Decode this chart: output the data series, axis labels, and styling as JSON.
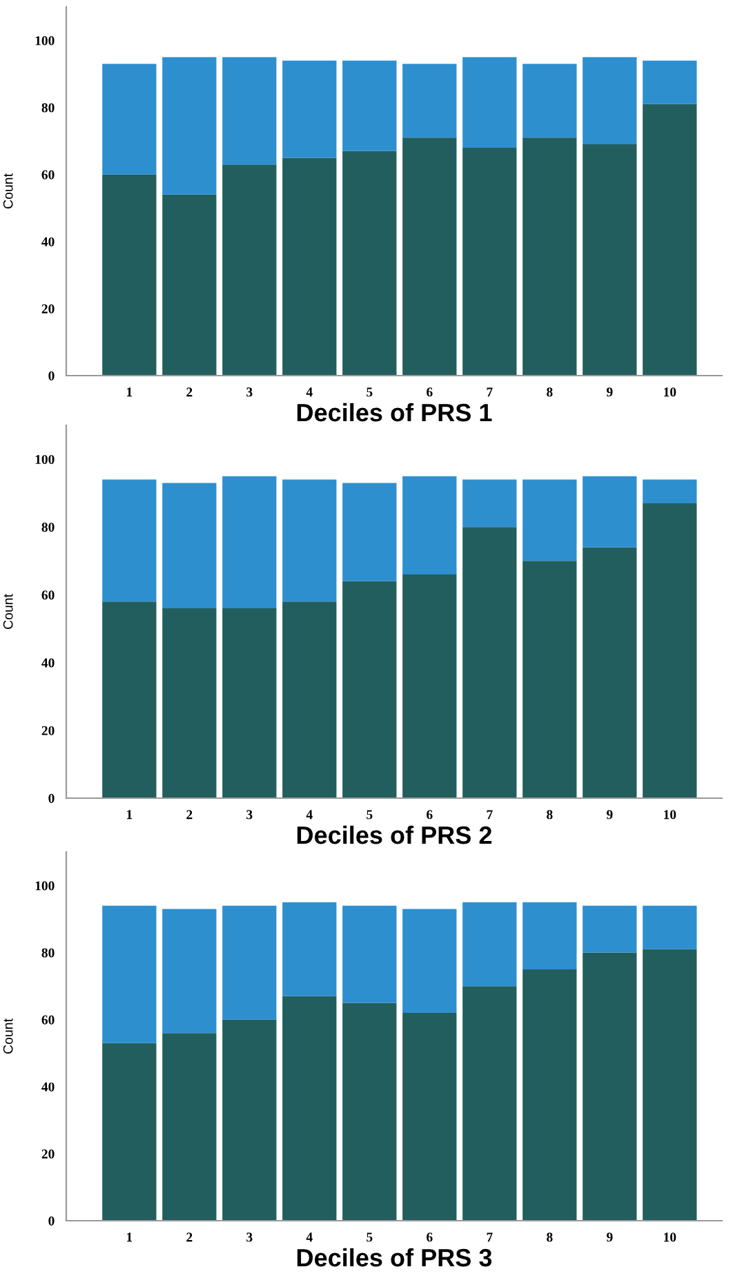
{
  "chart_data": [
    {
      "type": "bar",
      "stacked": true,
      "xlabel": "Deciles of PRS 1",
      "ylabel": "Count",
      "categories": [
        "1",
        "2",
        "3",
        "4",
        "5",
        "6",
        "7",
        "8",
        "9",
        "10"
      ],
      "ylim": [
        0,
        110
      ],
      "yticks": [
        0,
        20,
        40,
        60,
        80,
        100
      ],
      "grid": false,
      "legend": false,
      "series": [
        {
          "color": "#225e5d",
          "values": [
            60,
            54,
            63,
            65,
            67,
            71,
            68,
            71,
            69,
            81
          ]
        },
        {
          "color": "#2e8fcf",
          "values": [
            33,
            41,
            32,
            29,
            27,
            22,
            27,
            22,
            26,
            13
          ]
        }
      ]
    },
    {
      "type": "bar",
      "stacked": true,
      "xlabel": "Deciles of PRS 2",
      "ylabel": "Count",
      "categories": [
        "1",
        "2",
        "3",
        "4",
        "5",
        "6",
        "7",
        "8",
        "9",
        "10"
      ],
      "ylim": [
        0,
        110
      ],
      "yticks": [
        0,
        20,
        40,
        60,
        80,
        100
      ],
      "grid": false,
      "legend": false,
      "series": [
        {
          "color": "#225e5d",
          "values": [
            58,
            56,
            56,
            58,
            64,
            66,
            80,
            70,
            74,
            87
          ]
        },
        {
          "color": "#2e8fcf",
          "values": [
            36,
            37,
            39,
            36,
            29,
            29,
            14,
            24,
            21,
            7
          ]
        }
      ]
    },
    {
      "type": "bar",
      "stacked": true,
      "xlabel": "Deciles of PRS 3",
      "ylabel": "Count",
      "categories": [
        "1",
        "2",
        "3",
        "4",
        "5",
        "6",
        "7",
        "8",
        "9",
        "10"
      ],
      "ylim": [
        0,
        110
      ],
      "yticks": [
        0,
        20,
        40,
        60,
        80,
        100
      ],
      "grid": false,
      "legend": false,
      "series": [
        {
          "color": "#225e5d",
          "values": [
            53,
            56,
            60,
            67,
            65,
            62,
            70,
            75,
            80,
            81
          ]
        },
        {
          "color": "#2e8fcf",
          "values": [
            41,
            37,
            34,
            28,
            29,
            31,
            25,
            20,
            14,
            13
          ]
        }
      ]
    }
  ]
}
